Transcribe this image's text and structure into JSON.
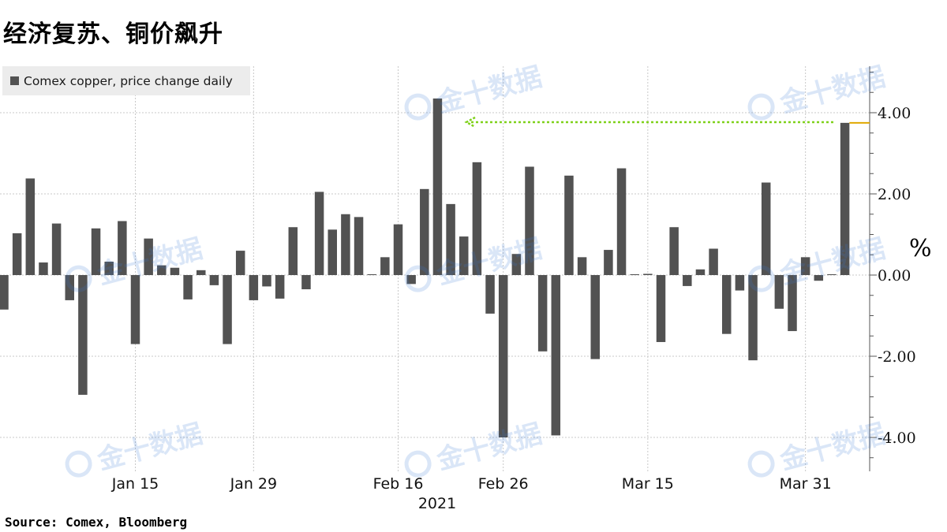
{
  "title": "经济复苏、铜价飙升",
  "source": "Source:  Comex, Bloomberg",
  "unit": "%",
  "watermark": "金十数据",
  "colors": {
    "bar": "#525252",
    "grid": "#c8c8c8",
    "arrow": "#7fd11a",
    "last_marker": "#e0a800",
    "axis": "#555555"
  },
  "chart_data": {
    "type": "bar",
    "series": [
      {
        "name": "Comex copper, price change daily",
        "values": [
          -0.85,
          1.03,
          2.38,
          0.31,
          1.27,
          -0.62,
          -2.95,
          1.15,
          0.33,
          1.33,
          -1.7,
          0.9,
          0.24,
          0.18,
          -0.6,
          0.12,
          -0.25,
          -1.7,
          0.6,
          -0.62,
          -0.28,
          -0.58,
          1.18,
          -0.35,
          2.05,
          1.12,
          1.5,
          1.43,
          0.02,
          0.44,
          1.25,
          -0.22,
          2.12,
          4.35,
          1.75,
          0.95,
          2.78,
          -0.95,
          -4.0,
          0.52,
          2.67,
          -1.88,
          -3.95,
          2.45,
          0.44,
          -2.07,
          0.62,
          2.63,
          0.02,
          0.03,
          -1.65,
          1.18,
          -0.27,
          0.14,
          0.65,
          -1.45,
          -0.38,
          -2.1,
          2.28,
          -0.83,
          -1.38,
          0.44,
          -0.14,
          0.02,
          3.75
        ]
      }
    ],
    "x_tick_labels": [
      "Jan 15",
      "Jan 29",
      "Feb 16",
      "Feb 26",
      "Mar 15",
      "Mar 31"
    ],
    "x_tick_index": [
      10,
      19,
      30,
      38,
      49,
      61
    ],
    "x_year_label": "2021",
    "y_ticks": [
      -4,
      -2,
      0,
      2,
      4
    ],
    "y_tick_labels": [
      "-4.00",
      "-2.00",
      "0.00",
      "2.00",
      "4.00"
    ],
    "ylim": [
      -4.8,
      5.2
    ],
    "last_value": 3.75,
    "grid": true,
    "legend_position": "top-left",
    "y_axis_side": "right"
  }
}
